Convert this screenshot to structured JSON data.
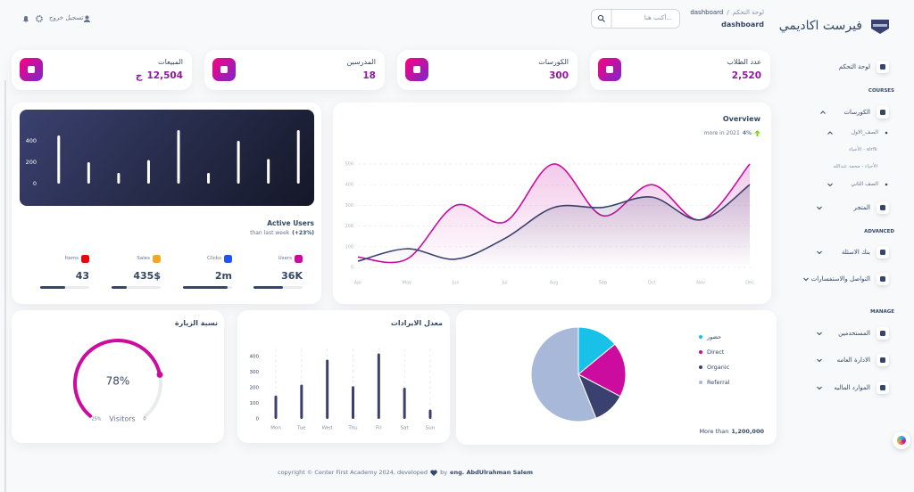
{
  "header": {
    "breadcrumb": {
      "root": "لوحة التحكم",
      "separator": "/",
      "current": "dashboard"
    },
    "title": "dashboard",
    "search_placeholder": "أكتب هنا...",
    "logout": "تسجيل خروج"
  },
  "sidebar": {
    "brand": "فيرست اكاديمي",
    "items": [
      "لوحة التحكم",
      "COURSES",
      "الكورسات",
      "الصف_الاول",
      "الأحياء - alrfk",
      "الأحياء - محمد عبدالله",
      "الصف الثاني",
      "المتجر",
      "ADVANCED",
      "بنك الاسئلة",
      "التواصل والاستفسارات",
      "MANAGE",
      "المستخدمين",
      "الادارة العامه",
      "الموارد الماليه"
    ]
  },
  "stats": [
    {
      "label": "المبيعات",
      "value": "12,504",
      "unit": "ج"
    },
    {
      "label": "المدرسين",
      "value": "18"
    },
    {
      "label": "الكورسات",
      "value": "300"
    },
    {
      "label": "عدد الطلاب",
      "value": "2,520"
    }
  ],
  "active_users_stats": [
    {
      "label": "Users",
      "value": "36K",
      "progress": 60,
      "color": "#cb0c9f"
    },
    {
      "label": "Clicks",
      "value": "2m",
      "progress": 90,
      "color": "#2152ff"
    },
    {
      "label": "Sales",
      "value": "435$",
      "progress": 30,
      "color": "#f5a623"
    },
    {
      "label": "Items",
      "value": "43",
      "progress": 50,
      "color": "#ea0606"
    }
  ],
  "chart_data": [
    {
      "type": "bar",
      "title": "Active Users",
      "subtitle": "than last week",
      "subtitle_highlight": "(+23%)",
      "values": [
        450,
        200,
        100,
        220,
        500,
        100,
        400,
        230,
        500
      ],
      "color": "#ffffff",
      "ylim": [
        0,
        500
      ],
      "yticks": [
        0,
        200,
        400
      ],
      "grid": false
    },
    {
      "type": "line",
      "title": "Overview",
      "change": "4%",
      "subtitle": "more in 2021",
      "categories": [
        "Apr",
        "May",
        "Jun",
        "Jul",
        "Aug",
        "Sep",
        "Oct",
        "Nov",
        "Dec"
      ],
      "series": [
        {
          "color": "#cb0c9f",
          "values": [
            50,
            40,
            300,
            220,
            500,
            250,
            400,
            230,
            500
          ]
        },
        {
          "color": "#3a416f",
          "values": [
            30,
            90,
            40,
            140,
            290,
            290,
            340,
            230,
            400
          ]
        }
      ],
      "ylim": [
        0,
        500
      ],
      "yticks": [
        0,
        100,
        200,
        300,
        400,
        500
      ],
      "grid": true
    },
    {
      "type": "gauge",
      "title": "نسبة الزيارة",
      "value": 78,
      "value_label": "78%",
      "label": "Visitors",
      "scale_labels": [
        "25%",
        "0"
      ],
      "ylim": [
        0,
        100
      ],
      "color": "#cb0c9f"
    },
    {
      "type": "bar",
      "title": "معدل الايرادات",
      "categories": [
        "Mon",
        "Tue",
        "Wed",
        "Thu",
        "Fri",
        "Sat",
        "Sun"
      ],
      "values": [
        150,
        220,
        380,
        210,
        420,
        200,
        60
      ],
      "color": "#3a416f",
      "ylim": [
        0,
        450
      ],
      "yticks": [
        0,
        100,
        200,
        300,
        400
      ],
      "grid": true
    },
    {
      "type": "pie",
      "categories": [
        "حضور",
        "Direct",
        "Organic",
        "Referral"
      ],
      "values": [
        15,
        20,
        12,
        60
      ],
      "colors": [
        "#17c1e8",
        "#cb0c9f",
        "#3a416f",
        "#a8b8d8"
      ],
      "caption": "More than",
      "caption_value": "1,200,000"
    }
  ],
  "footer": {
    "text": "copyright © Center First Academy 2024, developed",
    "by": "by",
    "author": "eng. AbdUlrahman Salem"
  }
}
